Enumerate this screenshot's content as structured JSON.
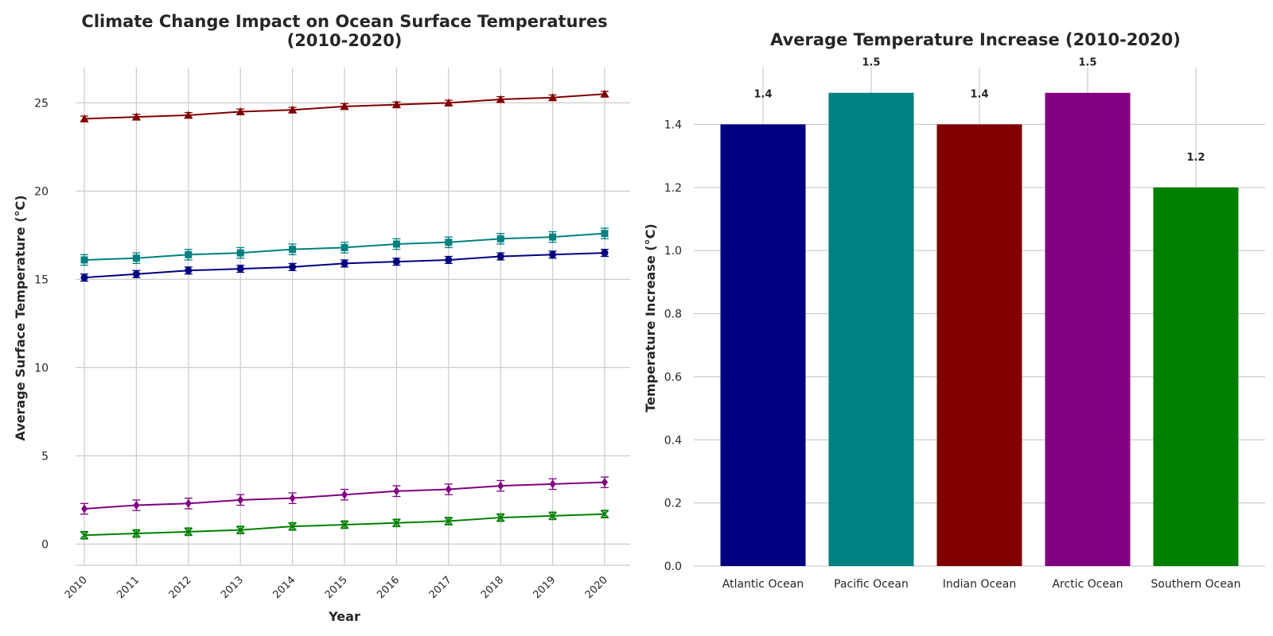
{
  "chart_data": [
    {
      "type": "line",
      "title_line1": "Climate Change Impact on Ocean Surface Temperatures",
      "title_line2": "(2010-2020)",
      "xlabel": "Year",
      "ylabel": "Average Surface Temperature (°C)",
      "x": [
        "2010",
        "2011",
        "2012",
        "2013",
        "2014",
        "2015",
        "2016",
        "2017",
        "2018",
        "2019",
        "2020"
      ],
      "ylim": [
        -1.2,
        27
      ],
      "yticks": [
        0,
        5,
        10,
        15,
        20,
        25
      ],
      "grid": true,
      "series": [
        {
          "color": "#000080",
          "marker": "circle",
          "values": [
            15.1,
            15.3,
            15.5,
            15.6,
            15.7,
            15.9,
            16.0,
            16.1,
            16.3,
            16.4,
            16.5
          ],
          "errors": [
            0.2,
            0.2,
            0.2,
            0.2,
            0.2,
            0.2,
            0.2,
            0.2,
            0.2,
            0.2,
            0.2
          ]
        },
        {
          "color": "#008080",
          "marker": "square",
          "values": [
            16.1,
            16.2,
            16.4,
            16.5,
            16.7,
            16.8,
            17.0,
            17.1,
            17.3,
            17.4,
            17.6
          ],
          "errors": [
            0.3,
            0.3,
            0.3,
            0.3,
            0.3,
            0.3,
            0.3,
            0.3,
            0.3,
            0.3,
            0.3
          ]
        },
        {
          "color": "#800000",
          "marker": "triangle",
          "values": [
            24.1,
            24.2,
            24.3,
            24.5,
            24.6,
            24.8,
            24.9,
            25.0,
            25.2,
            25.3,
            25.5
          ],
          "errors": [
            0.15,
            0.15,
            0.15,
            0.15,
            0.15,
            0.15,
            0.15,
            0.15,
            0.15,
            0.15,
            0.15
          ]
        },
        {
          "color": "#800080",
          "marker": "diamond",
          "values": [
            2.0,
            2.2,
            2.3,
            2.5,
            2.6,
            2.8,
            3.0,
            3.1,
            3.3,
            3.4,
            3.5
          ],
          "errors": [
            0.3,
            0.3,
            0.3,
            0.3,
            0.3,
            0.3,
            0.3,
            0.3,
            0.3,
            0.3,
            0.3
          ]
        },
        {
          "color": "#008000",
          "marker": "x",
          "values": [
            0.5,
            0.6,
            0.7,
            0.8,
            1.0,
            1.1,
            1.2,
            1.3,
            1.5,
            1.6,
            1.7
          ],
          "errors": [
            0.2,
            0.2,
            0.2,
            0.2,
            0.2,
            0.2,
            0.2,
            0.2,
            0.2,
            0.2,
            0.2
          ]
        }
      ]
    },
    {
      "type": "bar",
      "title": "Average Temperature Increase (2010-2020)",
      "xlabel": "",
      "ylabel": "Temperature Increase (°C)",
      "categories": [
        "Atlantic Ocean",
        "Pacific Ocean",
        "Indian Ocean",
        "Arctic Ocean",
        "Southern Ocean"
      ],
      "values": [
        1.4,
        1.5,
        1.4,
        1.5,
        1.2
      ],
      "value_labels": [
        "1.4",
        "1.5",
        "1.4",
        "1.5",
        "1.2"
      ],
      "colors": [
        "#000080",
        "#008080",
        "#800000",
        "#800080",
        "#008000"
      ],
      "ylim": [
        0,
        1.58
      ],
      "yticks": [
        "0.0",
        "0.2",
        "0.4",
        "0.6",
        "0.8",
        "1.0",
        "1.2",
        "1.4"
      ],
      "grid": true
    }
  ]
}
